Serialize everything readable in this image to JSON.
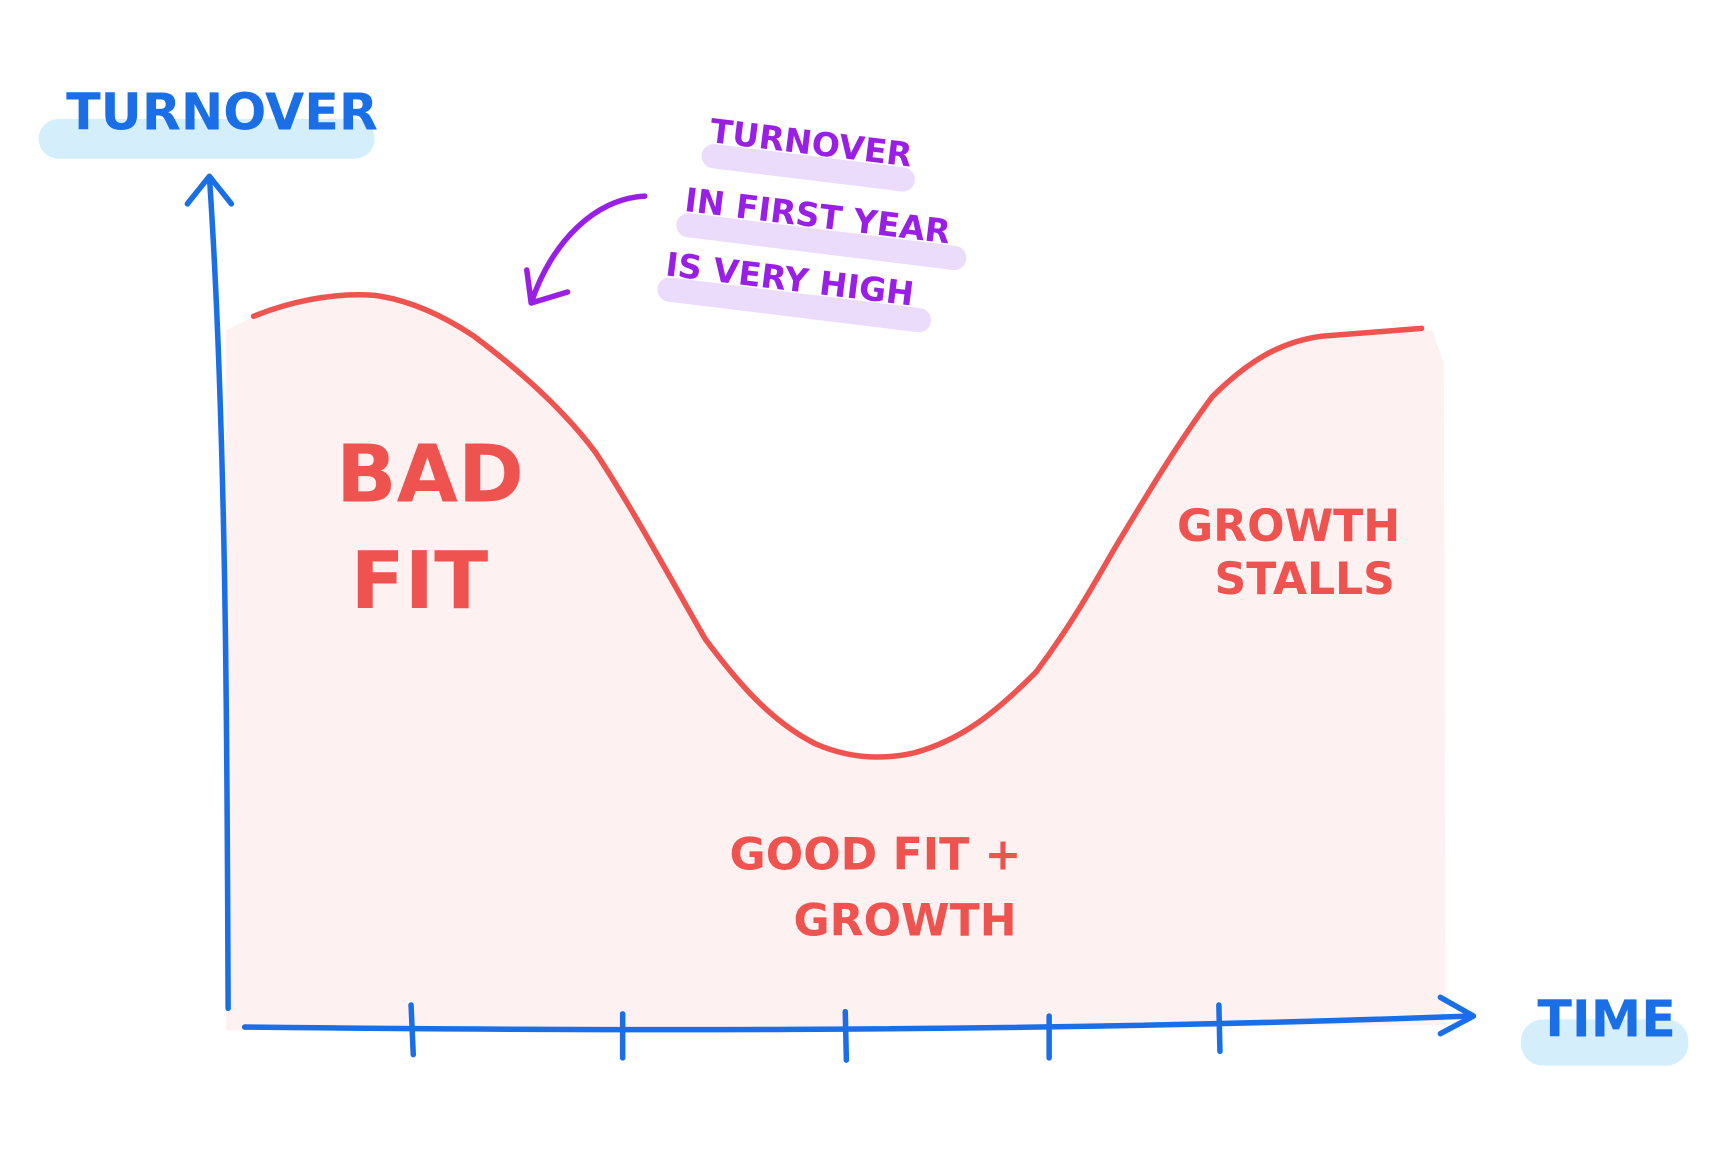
{
  "axes": {
    "y_label": "TURNOVER",
    "x_label": "TIME"
  },
  "annotation": {
    "lines": [
      "TURNOVER",
      "IN FIRST YEAR",
      "IS VERY HIGH"
    ]
  },
  "regions": [
    {
      "lines": [
        "BAD",
        "FIT"
      ]
    },
    {
      "lines": [
        "GROWTH",
        "STALLS"
      ]
    },
    {
      "lines": [
        "GOOD FIT +",
        "GROWTH"
      ]
    }
  ]
}
